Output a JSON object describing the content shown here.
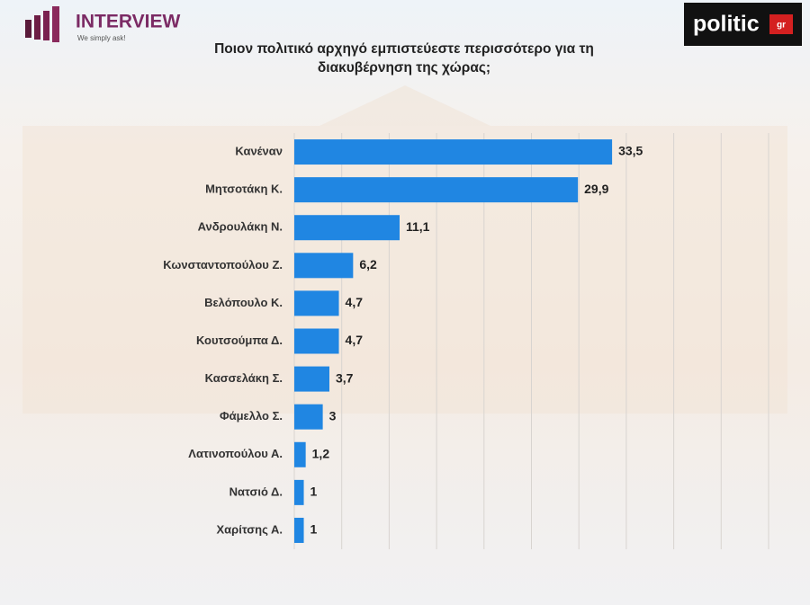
{
  "chart_data": {
    "type": "hbar",
    "title": "Ποιον πολιτικό αρχηγό εμπιστεύεστε περισσότερο για τη διακυβέρνηση της χώρας;",
    "categories": [
      "Κανέναν",
      "Μητσοτάκη Κ.",
      "Ανδρουλάκη Ν.",
      "Κωνσταντοπούλου Ζ.",
      "Βελόπουλο Κ.",
      "Κουτσούμπα Δ.",
      "Κασσελάκη Σ.",
      "Φάμελλο Σ.",
      "Λατινοπούλου Α.",
      "Νατσιό Δ.",
      "Χαρίτσης Α."
    ],
    "values": [
      33.5,
      29.9,
      11.1,
      6.2,
      4.7,
      4.7,
      3.7,
      3,
      1.2,
      1,
      1
    ],
    "value_labels": [
      "33,5",
      "29,9",
      "11,1",
      "6,2",
      "4,7",
      "4,7",
      "3,7",
      "3",
      "1,2",
      "1",
      "1"
    ],
    "color": "#2086e2",
    "xlim": [
      0,
      50
    ],
    "xticks": [
      0,
      5,
      10,
      15,
      20,
      25,
      30,
      35,
      40,
      45,
      50
    ],
    "grid": true
  },
  "logos": {
    "interview": "INTERVIEW",
    "tagline": "We simply ask!",
    "politic": "politic",
    "politic_suffix": "gr"
  }
}
